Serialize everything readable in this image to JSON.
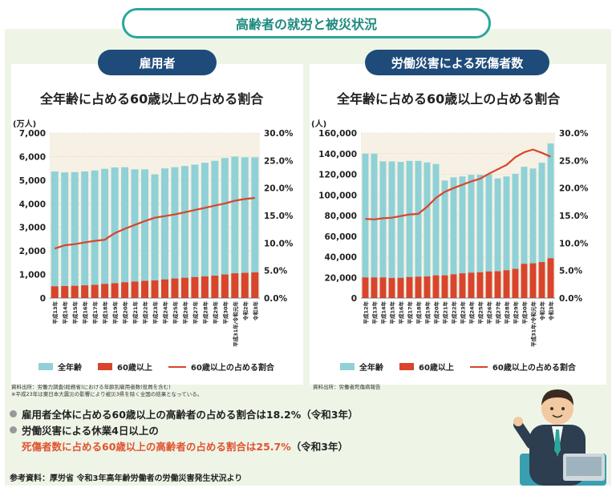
{
  "title": "高齢者の就労と被災状況",
  "left": {
    "header": "雇用者",
    "subtitle": "全年齢に占める60歳以上の占める割合",
    "y_unit": "(万人)",
    "source_lines": [
      "資料出所：労働力調査(総務省)における年齢別雇用者数(役員を含む)",
      "※平成23年は東日本大震災の影響により被災3県を除く全国の結果となっている。"
    ]
  },
  "right": {
    "header": "労働災害による死傷者数",
    "subtitle": "全年齢に占める60歳以上の占める割合",
    "y_unit": "(人)",
    "source_lines": [
      "資料出所：労働者死傷病報告"
    ]
  },
  "legend": {
    "all_ages": "全年齢",
    "over60": "60歳以上",
    "ratio": "60歳以上の占める割合"
  },
  "colors": {
    "all_ages": "#8fd1d6",
    "over60": "#d9442c",
    "ratio": "#d9442c",
    "accent": "#2aa79b",
    "header_bg": "#1f4b7a",
    "plot_bg": "#f6f1e4"
  },
  "bullets": {
    "b1": "雇用者全体に占める60歳以上の高齢者の占める割合は18.2%（令和3年）",
    "b2_line1": "労働災害による休業4日以上の",
    "b2_line2_red": "死傷者数に占める60歳以上の高齢者の占める割合は25.7%",
    "b2_line2_tail": "（令和3年）"
  },
  "reference": "参考資料：厚労省 令和3年高年齢労働者の労働災害発生状況より",
  "chart_data": [
    {
      "type": "bar",
      "title": "全年齢に占める60歳以上の占める割合",
      "ylabel": "(万人)",
      "ylim": [
        0,
        7000
      ],
      "y2lim": [
        0,
        30
      ],
      "y_ticks": [
        "0",
        "1,000",
        "2,000",
        "3,000",
        "4,000",
        "5,000",
        "6,000",
        "7,000"
      ],
      "y2_ticks": [
        "0.0%",
        "5.0%",
        "10.0%",
        "15.0%",
        "20.0%",
        "25.0%",
        "30.0%"
      ],
      "categories": [
        "平成13年",
        "平成14年",
        "平成15年",
        "平成16年",
        "平成17年",
        "平成18年",
        "平成19年",
        "平成20年",
        "平成21年",
        "平成22年",
        "平成23年",
        "平成24年",
        "平成25年",
        "平成26年",
        "平成27年",
        "平成28年",
        "平成29年",
        "平成30年",
        "平成31年/令和元年",
        "令和2年",
        "令和3年"
      ],
      "series": [
        {
          "name": "全年齢",
          "values": [
            5370,
            5330,
            5340,
            5370,
            5410,
            5480,
            5540,
            5550,
            5460,
            5460,
            5250,
            5500,
            5550,
            5600,
            5660,
            5740,
            5820,
            5940,
            6000,
            5970,
            5970
          ]
        },
        {
          "name": "60歳以上",
          "values": [
            500,
            510,
            520,
            540,
            560,
            600,
            630,
            670,
            700,
            730,
            750,
            790,
            830,
            860,
            890,
            920,
            950,
            1000,
            1050,
            1070,
            1090
          ]
        },
        {
          "name": "60歳以上の占める割合",
          "axis": "right",
          "values": [
            9.0,
            9.6,
            9.8,
            10.1,
            10.4,
            10.6,
            11.8,
            12.6,
            13.3,
            14.0,
            14.6,
            14.9,
            15.2,
            15.6,
            16.0,
            16.4,
            16.8,
            17.2,
            17.7,
            18.0,
            18.2
          ]
        }
      ],
      "annotations": []
    },
    {
      "type": "bar",
      "title": "全年齢に占める60歳以上の占める割合",
      "ylabel": "(人)",
      "ylim": [
        0,
        160000
      ],
      "y2lim": [
        0,
        30
      ],
      "y_ticks": [
        "0",
        "20,000",
        "40,000",
        "60,000",
        "80,000",
        "100,000",
        "120,000",
        "140,000",
        "160,000"
      ],
      "y2_ticks": [
        "0.0%",
        "5.0%",
        "10.0%",
        "15.0%",
        "20.0%",
        "25.0%",
        "30.0%"
      ],
      "categories": [
        "平成12年",
        "平成13年",
        "平成14年",
        "平成15年",
        "平成16年",
        "平成17年",
        "平成18年",
        "平成19年",
        "平成20年",
        "平成21年",
        "平成22年",
        "平成23年",
        "平成24年",
        "平成25年",
        "平成26年",
        "平成27年",
        "平成28年",
        "平成29年",
        "平成30年",
        "平成31年/令和元年",
        "令和2年",
        "令和3年"
      ],
      "series": [
        {
          "name": "全年齢",
          "values": [
            140000,
            140000,
            132500,
            132500,
            132000,
            133000,
            133000,
            131500,
            130000,
            114000,
            117000,
            117900,
            119500,
            119500,
            120000,
            116000,
            117900,
            120500,
            127300,
            125600,
            131200,
            149900
          ]
        },
        {
          "name": "60歳以上",
          "values": [
            20000,
            20000,
            20000,
            19500,
            19600,
            20400,
            20700,
            21000,
            22000,
            22000,
            23000,
            24000,
            24600,
            25000,
            25800,
            26000,
            27000,
            28300,
            33200,
            33700,
            34900,
            38600
          ]
        },
        {
          "name": "60歳以上の占める割合",
          "axis": "right",
          "values": [
            14.4,
            14.3,
            14.5,
            14.6,
            14.9,
            15.2,
            15.3,
            16.6,
            18.2,
            19.3,
            20.0,
            20.6,
            21.2,
            21.7,
            22.6,
            23.4,
            24.2,
            25.6,
            26.5,
            27.0,
            26.4,
            25.7
          ]
        }
      ],
      "annotations": []
    }
  ]
}
